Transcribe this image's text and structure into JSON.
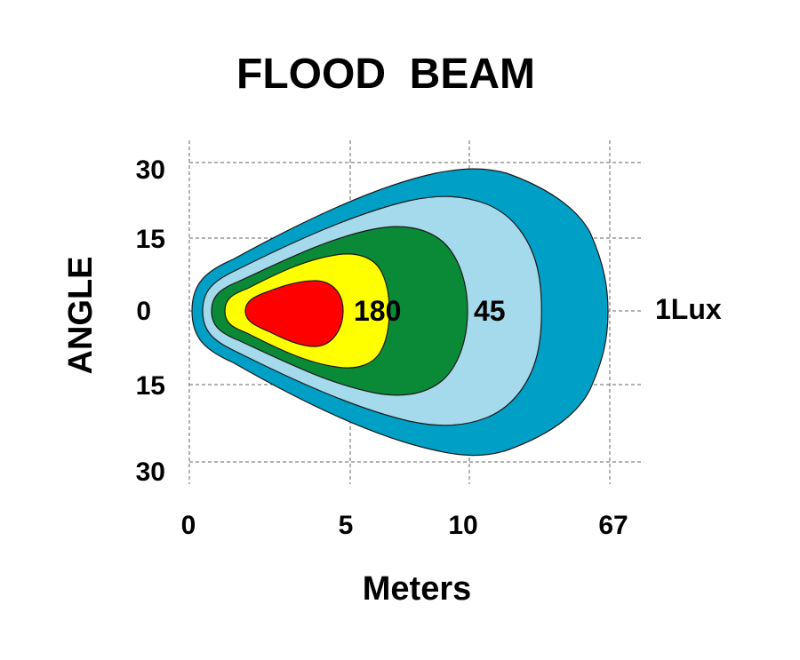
{
  "chart_data": {
    "type": "beam-pattern",
    "title": "FLOOD  BEAM",
    "xlabel": "Meters",
    "ylabel": "ANGLE",
    "x_ticks": [
      "0",
      "5",
      "10",
      "67"
    ],
    "y_ticks": [
      "30",
      "15",
      "0",
      "15",
      "30"
    ],
    "grid": true,
    "zones": [
      {
        "label": "1Lux",
        "color": "#009FC6",
        "reach": "67"
      },
      {
        "label": "",
        "color": "#A5D9EC",
        "reach": ""
      },
      {
        "label": "45",
        "color": "#0A8A36",
        "reach": "10"
      },
      {
        "label": "180",
        "color": "#FFFF00",
        "reach": "5"
      },
      {
        "label": "",
        "color": "#FF0000",
        "reach": ""
      }
    ]
  }
}
